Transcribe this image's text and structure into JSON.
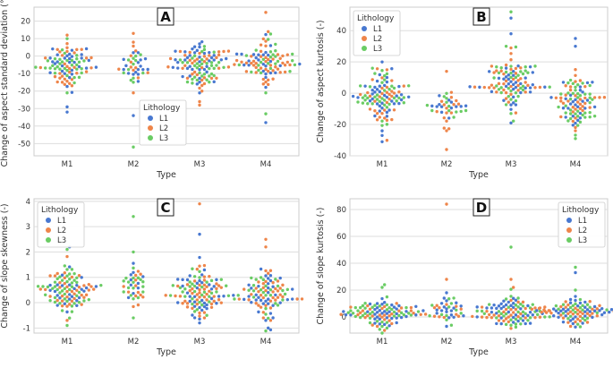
{
  "colors": {
    "L1": "#4878d0",
    "L2": "#ee854a",
    "L3": "#6acc64",
    "grid": "#dddddd",
    "axes_bg": "#ffffff",
    "frame": "#cccccc"
  },
  "chart_data": [
    {
      "panel": "A",
      "type": "scatter",
      "style": "swarm",
      "categories": [
        "M1",
        "M2",
        "M3",
        "M4"
      ],
      "xlabel": "Type",
      "ylabel": "Change of aspect standard deviation (°)",
      "ylim": [
        -57,
        28
      ],
      "yticks": [
        20,
        10,
        0,
        -10,
        -20,
        -30,
        -40,
        -50
      ],
      "legend": {
        "title": "Lithology",
        "entries": [
          "L1",
          "L2",
          "L3"
        ],
        "placement": "lower-center"
      },
      "series": [
        {
          "name": "M1",
          "n": 95,
          "center": -5,
          "spread": 6,
          "outliers": [
            12,
            10,
            -29,
            -32,
            -21
          ]
        },
        {
          "name": "M2",
          "n": 40,
          "center": -7,
          "spread": 6,
          "outliers": [
            13,
            -34,
            -52,
            -21
          ]
        },
        {
          "name": "M3",
          "n": 110,
          "center": -5,
          "spread": 7,
          "outliers": [
            7,
            -26,
            -28,
            -20
          ]
        },
        {
          "name": "M4",
          "n": 95,
          "center": -4,
          "spread": 6,
          "outliers": [
            25,
            14,
            -33,
            -38,
            -21
          ]
        }
      ]
    },
    {
      "panel": "B",
      "type": "scatter",
      "style": "swarm",
      "categories": [
        "M1",
        "M2",
        "M3",
        "M4"
      ],
      "xlabel": "Type",
      "ylabel": "Change of aspect kurtosis (-)",
      "ylim": [
        -40,
        55
      ],
      "yticks": [
        40,
        20,
        0,
        -20,
        -40
      ],
      "legend": {
        "title": "Lithology",
        "entries": [
          "L1",
          "L2",
          "L3"
        ],
        "placement": "upper-left"
      },
      "series": [
        {
          "name": "M1",
          "n": 110,
          "center": -3,
          "spread": 8,
          "outliers": [
            20,
            16,
            -27,
            -31
          ]
        },
        {
          "name": "M2",
          "n": 40,
          "center": -8,
          "spread": 7,
          "outliers": [
            14,
            -24,
            -36
          ]
        },
        {
          "name": "M3",
          "n": 110,
          "center": 5,
          "spread": 8,
          "outliers": [
            52,
            48,
            38,
            30,
            -13
          ]
        },
        {
          "name": "M4",
          "n": 100,
          "center": -4,
          "spread": 8,
          "outliers": [
            35,
            30,
            -24,
            -29
          ]
        }
      ]
    },
    {
      "panel": "C",
      "type": "scatter",
      "style": "swarm",
      "categories": [
        "M1",
        "M2",
        "M3",
        "M4"
      ],
      "xlabel": "Type",
      "ylabel": "Change of slope skewness (-)",
      "ylim": [
        -1.2,
        4.1
      ],
      "yticks": [
        4,
        3,
        2,
        1,
        0,
        -1
      ],
      "legend": {
        "title": "Lithology",
        "entries": [
          "L1",
          "L2",
          "L3"
        ],
        "placement": "upper-left"
      },
      "series": [
        {
          "name": "M1",
          "n": 110,
          "center": 0.4,
          "spread": 0.45,
          "outliers": [
            2.2,
            2.1,
            -0.7,
            -0.9
          ]
        },
        {
          "name": "M2",
          "n": 40,
          "center": 0.7,
          "spread": 0.5,
          "outliers": [
            3.4,
            2.0,
            -0.6
          ]
        },
        {
          "name": "M3",
          "n": 120,
          "center": 0.4,
          "spread": 0.5,
          "outliers": [
            3.9,
            2.7,
            -0.6,
            -0.8
          ]
        },
        {
          "name": "M4",
          "n": 100,
          "center": 0.3,
          "spread": 0.5,
          "outliers": [
            2.5,
            2.2,
            -0.7,
            -1.0
          ]
        }
      ]
    },
    {
      "panel": "D",
      "type": "scatter",
      "style": "swarm",
      "categories": [
        "M1",
        "M2",
        "M3",
        "M4"
      ],
      "xlabel": "Type",
      "ylabel": "Change of slope kurtosis (-)",
      "ylim": [
        -12,
        88
      ],
      "yticks": [
        80,
        60,
        40,
        20,
        0
      ],
      "legend": {
        "title": "Lithology",
        "entries": [
          "L1",
          "L2",
          "L3"
        ],
        "placement": "upper-right"
      },
      "series": [
        {
          "name": "M1",
          "n": 110,
          "center": 3,
          "spread": 5,
          "outliers": [
            24,
            22,
            -7,
            -10
          ]
        },
        {
          "name": "M2",
          "n": 40,
          "center": 6,
          "spread": 5,
          "outliers": [
            84,
            28,
            18,
            -7
          ]
        },
        {
          "name": "M3",
          "n": 110,
          "center": 3,
          "spread": 5,
          "outliers": [
            52,
            28,
            22,
            -4
          ]
        },
        {
          "name": "M4",
          "n": 100,
          "center": 3,
          "spread": 5,
          "outliers": [
            37,
            33,
            20,
            -5
          ]
        }
      ]
    }
  ]
}
